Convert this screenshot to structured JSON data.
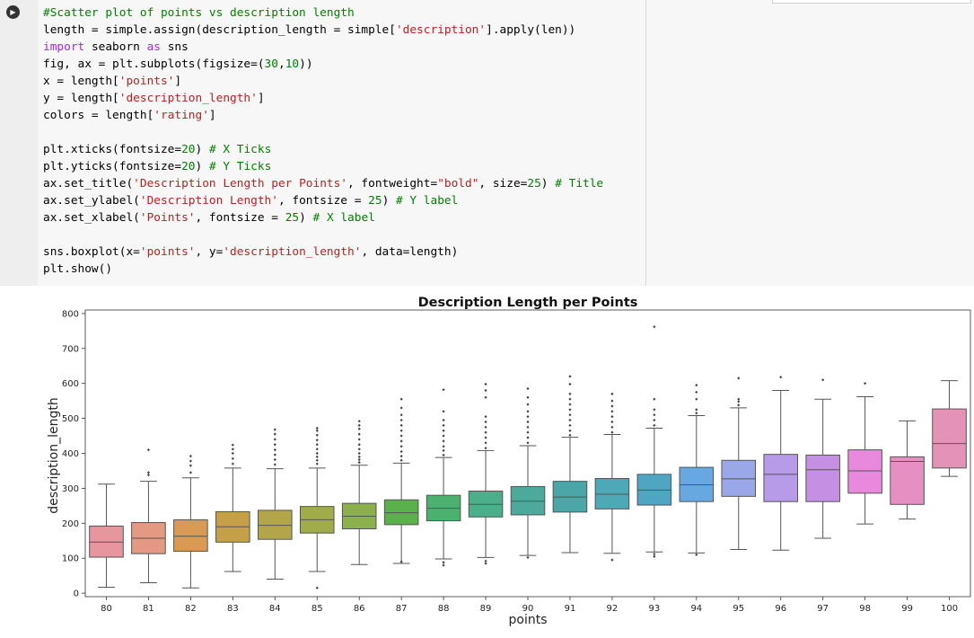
{
  "cell": {
    "run_icon": "play-icon",
    "code_lines": [
      [
        {
          "t": "#Scatter plot of points vs description length",
          "c": "comment"
        }
      ],
      [
        {
          "t": "length = simple.assign(description_length = simple["
        },
        {
          "t": "'description'",
          "c": "string"
        },
        {
          "t": "].apply(len))"
        }
      ],
      [
        {
          "t": "import",
          "c": "keyword"
        },
        {
          "t": " seaborn "
        },
        {
          "t": "as",
          "c": "keyword"
        },
        {
          "t": " sns"
        }
      ],
      [
        {
          "t": "fig, ax = plt.subplots(figsize=("
        },
        {
          "t": "30",
          "c": "number"
        },
        {
          "t": ","
        },
        {
          "t": "10",
          "c": "number"
        },
        {
          "t": "))"
        }
      ],
      [
        {
          "t": "x = length["
        },
        {
          "t": "'points'",
          "c": "string"
        },
        {
          "t": "]"
        }
      ],
      [
        {
          "t": "y = length["
        },
        {
          "t": "'description_length'",
          "c": "string"
        },
        {
          "t": "]"
        }
      ],
      [
        {
          "t": "colors = length["
        },
        {
          "t": "'rating'",
          "c": "string"
        },
        {
          "t": "]"
        }
      ],
      [],
      [
        {
          "t": "plt.xticks(fontsize="
        },
        {
          "t": "20",
          "c": "number"
        },
        {
          "t": ") "
        },
        {
          "t": "# X Ticks",
          "c": "comment"
        }
      ],
      [
        {
          "t": "plt.yticks(fontsize="
        },
        {
          "t": "20",
          "c": "number"
        },
        {
          "t": ") "
        },
        {
          "t": "# Y Ticks",
          "c": "comment"
        }
      ],
      [
        {
          "t": "ax.set_title("
        },
        {
          "t": "'Description Length per Points'",
          "c": "string"
        },
        {
          "t": ", fontweight="
        },
        {
          "t": "\"bold\"",
          "c": "string"
        },
        {
          "t": ", size="
        },
        {
          "t": "25",
          "c": "number"
        },
        {
          "t": ") "
        },
        {
          "t": "# Title",
          "c": "comment"
        }
      ],
      [
        {
          "t": "ax.set_ylabel("
        },
        {
          "t": "'Description Length'",
          "c": "string"
        },
        {
          "t": ", fontsize = "
        },
        {
          "t": "25",
          "c": "number"
        },
        {
          "t": ") "
        },
        {
          "t": "# Y label",
          "c": "comment"
        }
      ],
      [
        {
          "t": "ax.set_xlabel("
        },
        {
          "t": "'Points'",
          "c": "string"
        },
        {
          "t": ", fontsize = "
        },
        {
          "t": "25",
          "c": "number"
        },
        {
          "t": ") "
        },
        {
          "t": "# X label",
          "c": "comment"
        }
      ],
      [],
      [
        {
          "t": "sns.boxplot(x="
        },
        {
          "t": "'points'",
          "c": "string"
        },
        {
          "t": ", y="
        },
        {
          "t": "'description_length'",
          "c": "string"
        },
        {
          "t": ", data=length)"
        }
      ],
      [
        {
          "t": "plt.show()"
        }
      ]
    ]
  },
  "chart_data": {
    "type": "box",
    "title": "Description Length per Points",
    "xlabel": "points",
    "ylabel": "description_length",
    "ylim": [
      -10,
      810
    ],
    "yticks": [
      0,
      100,
      200,
      300,
      400,
      500,
      600,
      700,
      800
    ],
    "grid": false,
    "categories": [
      "80",
      "81",
      "82",
      "83",
      "84",
      "85",
      "86",
      "87",
      "88",
      "89",
      "90",
      "91",
      "92",
      "93",
      "94",
      "95",
      "96",
      "97",
      "98",
      "99",
      "100"
    ],
    "colors": [
      "#e8969d",
      "#e49a82",
      "#d99a53",
      "#c5a049",
      "#b3a64a",
      "#a0ac4a",
      "#8cb04b",
      "#5ab04b",
      "#4cb06f",
      "#4caf8b",
      "#4ca99c",
      "#4ca5a6",
      "#4ca9b5",
      "#4ea6c2",
      "#67a8e0",
      "#9aa8ea",
      "#b79ae8",
      "#c58fe4",
      "#e889dd",
      "#e58fc5",
      "#e592b7"
    ],
    "boxes": [
      {
        "whislo": 17,
        "q1": 103,
        "med": 146,
        "q3": 192,
        "whishi": 312,
        "fliers": []
      },
      {
        "whislo": 30,
        "q1": 113,
        "med": 157,
        "q3": 202,
        "whishi": 320,
        "fliers": [
          338,
          345,
          410
        ]
      },
      {
        "whislo": 15,
        "q1": 120,
        "med": 163,
        "q3": 210,
        "whishi": 330,
        "fliers": [
          345,
          365,
          378,
          392
        ]
      },
      {
        "whislo": 62,
        "q1": 146,
        "med": 190,
        "q3": 233,
        "whishi": 358,
        "fliers": [
          370,
          385,
          400,
          412,
          424
        ]
      },
      {
        "whislo": 40,
        "q1": 154,
        "med": 194,
        "q3": 237,
        "whishi": 356,
        "fliers": [
          368,
          382,
          396,
          410,
          425,
          440,
          455,
          468
        ]
      },
      {
        "whislo": 62,
        "q1": 172,
        "med": 210,
        "q3": 248,
        "whishi": 358,
        "fliers": [
          15,
          370,
          380,
          390,
          400,
          412,
          425,
          438,
          452,
          465,
          472
        ]
      },
      {
        "whislo": 82,
        "q1": 184,
        "med": 220,
        "q3": 257,
        "whishi": 366,
        "fliers": [
          374,
          382,
          390,
          400,
          412,
          425,
          440,
          455,
          470,
          480,
          492
        ]
      },
      {
        "whislo": 85,
        "q1": 196,
        "med": 230,
        "q3": 267,
        "whishi": 372,
        "fliers": [
          90,
          380,
          392,
          405,
          420,
          435,
          450,
          465,
          480,
          495,
          510,
          530,
          555
        ]
      },
      {
        "whislo": 98,
        "q1": 207,
        "med": 243,
        "q3": 280,
        "whishi": 388,
        "fliers": [
          80,
          88,
          395,
          408,
          420,
          435,
          450,
          465,
          480,
          495,
          520,
          582
        ]
      },
      {
        "whislo": 102,
        "q1": 218,
        "med": 254,
        "q3": 292,
        "whishi": 408,
        "fliers": [
          85,
          92,
          415,
          430,
          445,
          460,
          475,
          490,
          505,
          560,
          580,
          598
        ]
      },
      {
        "whislo": 108,
        "q1": 224,
        "med": 263,
        "q3": 305,
        "whishi": 422,
        "fliers": [
          102,
          430,
          445,
          460,
          475,
          490,
          505,
          520,
          540,
          560,
          585
        ]
      },
      {
        "whislo": 116,
        "q1": 232,
        "med": 275,
        "q3": 320,
        "whishi": 446,
        "fliers": [
          452,
          465,
          480,
          495,
          510,
          525,
          540,
          555,
          570,
          598,
          620
        ]
      },
      {
        "whislo": 114,
        "q1": 241,
        "med": 283,
        "q3": 328,
        "whishi": 454,
        "fliers": [
          95,
          460,
          475,
          490,
          505,
          520,
          535,
          550,
          570
        ]
      },
      {
        "whislo": 118,
        "q1": 252,
        "med": 295,
        "q3": 340,
        "whishi": 472,
        "fliers": [
          105,
          112,
          480,
          495,
          510,
          525,
          555,
          762
        ]
      },
      {
        "whislo": 115,
        "q1": 262,
        "med": 310,
        "q3": 360,
        "whishi": 508,
        "fliers": [
          110,
          515,
          525,
          555,
          575,
          595
        ]
      },
      {
        "whislo": 125,
        "q1": 277,
        "med": 327,
        "q3": 380,
        "whishi": 530,
        "fliers": [
          538,
          548,
          555,
          615
        ]
      },
      {
        "whislo": 123,
        "q1": 262,
        "med": 340,
        "q3": 397,
        "whishi": 580,
        "fliers": [
          618
        ]
      },
      {
        "whislo": 157,
        "q1": 262,
        "med": 353,
        "q3": 395,
        "whishi": 555,
        "fliers": [
          610
        ]
      },
      {
        "whislo": 198,
        "q1": 286,
        "med": 350,
        "q3": 410,
        "whishi": 562,
        "fliers": [
          600
        ]
      },
      {
        "whislo": 212,
        "q1": 254,
        "med": 377,
        "q3": 390,
        "whishi": 493,
        "fliers": []
      },
      {
        "whislo": 334,
        "q1": 358,
        "med": 428,
        "q3": 527,
        "whishi": 608,
        "fliers": []
      }
    ]
  }
}
